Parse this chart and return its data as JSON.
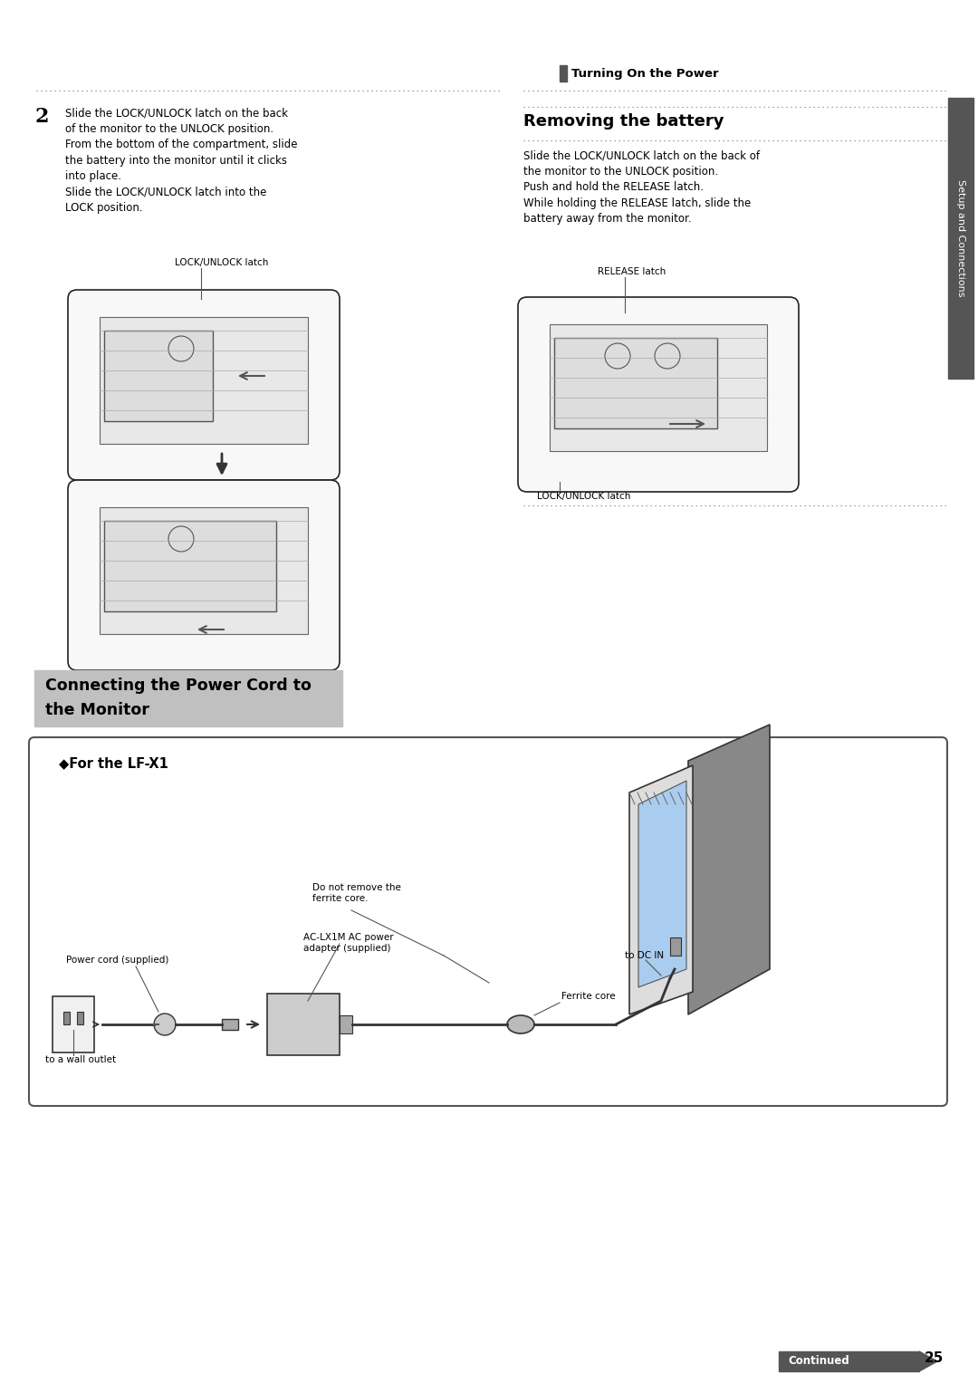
{
  "page_bg": "#ffffff",
  "page_width": 10.8,
  "page_height": 15.28,
  "dpi": 100,
  "header_text": "Turning On the Power",
  "header_bar_color": "#555555",
  "step2_number": "2",
  "step2_text_lines": [
    "Slide the LOCK/UNLOCK latch on the back",
    "of the monitor to the UNLOCK position.",
    "From the bottom of the compartment, slide",
    "the battery into the monitor until it clicks",
    "into place.",
    "Slide the LOCK/UNLOCK latch into the",
    "LOCK position."
  ],
  "lock_latch_label": "LOCK/UNLOCK latch",
  "removing_battery_title": "Removing the battery",
  "removing_battery_text_lines": [
    "Slide the LOCK/UNLOCK latch on the back of",
    "the monitor to the UNLOCK position.",
    "Push and hold the RELEASE latch.",
    "While holding the RELEASE latch, slide the",
    "battery away from the monitor."
  ],
  "release_latch_label": "RELEASE latch",
  "lock_unlock_latch_label2": "LOCK/UNLOCK latch",
  "section_title_bg": "#c0c0c0",
  "section_title_text_line1": "Connecting the Power Cord to",
  "section_title_text_line2": "the Monitor",
  "lf_x1_box_label": "◆For the LF-X1",
  "ann_do_not_remove": "Do not remove the\nferrite core.",
  "ann_ac_adapter": "AC-LX1M AC power\nadapter (supplied)",
  "ann_power_cord": "Power cord (supplied)",
  "ann_wall_outlet": "to a wall outlet",
  "ann_to_dc_in": "to DC IN",
  "ann_ferrite_core": "Ferrite core",
  "sidebar_text": "Setup and Connections",
  "sidebar_bg": "#555555",
  "page_number": "25",
  "continued_bg": "#555555",
  "continued_text": "Continued"
}
